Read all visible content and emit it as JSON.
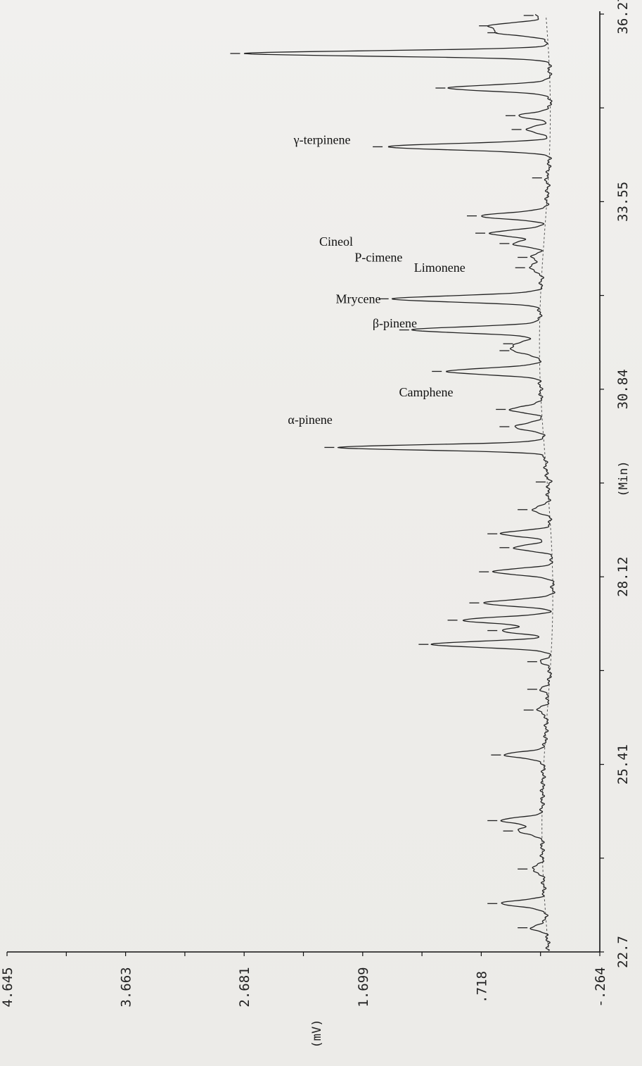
{
  "chart_data": {
    "type": "line",
    "orientation": "rotated-90-ccw",
    "xlabel": "(Min)",
    "ylabel": "(mV)",
    "xlim": [
      22.7,
      36.27
    ],
    "ylim": [
      -0.264,
      4.645
    ],
    "x_ticks": [
      "22.7",
      "25.41",
      "28.12",
      "30.84",
      "33.55",
      "36.27"
    ],
    "y_ticks": [
      "-.264",
      ".718",
      "1.699",
      "2.681",
      "3.663",
      "4.645"
    ],
    "annotations": [
      {
        "text": "α-pinene",
        "x": 30.4,
        "y": 1.95
      },
      {
        "text": "Camphene",
        "x": 30.8,
        "y": 0.95
      },
      {
        "text": "β-pinene",
        "x": 31.8,
        "y": 1.25
      },
      {
        "text": "Mrycene",
        "x": 32.15,
        "y": 1.55
      },
      {
        "text": "Limonene",
        "x": 32.6,
        "y": 0.85
      },
      {
        "text": "P-cimene",
        "x": 32.75,
        "y": 1.37
      },
      {
        "text": "Cineol",
        "x": 32.98,
        "y": 1.78
      },
      {
        "text": "γ-terpinene",
        "x": 34.45,
        "y": 1.8
      }
    ],
    "series": [
      {
        "peaks": [
          {
            "x": 23.05,
            "y": 0.3
          },
          {
            "x": 23.4,
            "y": 0.55
          },
          {
            "x": 23.9,
            "y": 0.3
          },
          {
            "x": 24.45,
            "y": 0.42
          },
          {
            "x": 24.6,
            "y": 0.55
          },
          {
            "x": 25.55,
            "y": 0.52
          },
          {
            "x": 26.2,
            "y": 0.25
          },
          {
            "x": 26.5,
            "y": 0.22
          },
          {
            "x": 26.9,
            "y": 0.22
          },
          {
            "x": 27.15,
            "y": 1.12
          },
          {
            "x": 27.35,
            "y": 0.55
          },
          {
            "x": 27.5,
            "y": 0.88
          },
          {
            "x": 27.75,
            "y": 0.7
          },
          {
            "x": 28.2,
            "y": 0.62
          },
          {
            "x": 28.55,
            "y": 0.45
          },
          {
            "x": 28.75,
            "y": 0.55
          },
          {
            "x": 29.1,
            "y": 0.3
          },
          {
            "x": 29.5,
            "y": 0.15
          },
          {
            "x": 30.0,
            "y": 1.9
          },
          {
            "x": 30.3,
            "y": 0.45
          },
          {
            "x": 30.55,
            "y": 0.48
          },
          {
            "x": 31.1,
            "y": 1.01
          },
          {
            "x": 31.4,
            "y": 0.45
          },
          {
            "x": 31.5,
            "y": 0.42
          },
          {
            "x": 31.7,
            "y": 1.28
          },
          {
            "x": 32.15,
            "y": 1.45
          },
          {
            "x": 32.6,
            "y": 0.32
          },
          {
            "x": 32.75,
            "y": 0.3
          },
          {
            "x": 32.95,
            "y": 0.45
          },
          {
            "x": 33.1,
            "y": 0.65
          },
          {
            "x": 33.35,
            "y": 0.72
          },
          {
            "x": 33.9,
            "y": 0.18
          },
          {
            "x": 34.35,
            "y": 1.5
          },
          {
            "x": 34.6,
            "y": 0.35
          },
          {
            "x": 34.8,
            "y": 0.4
          },
          {
            "x": 35.2,
            "y": 0.98
          },
          {
            "x": 35.7,
            "y": 2.68
          },
          {
            "x": 36.0,
            "y": 0.55
          },
          {
            "x": 36.1,
            "y": 0.62
          },
          {
            "x": 36.25,
            "y": 0.25
          }
        ]
      }
    ],
    "grid": false
  }
}
